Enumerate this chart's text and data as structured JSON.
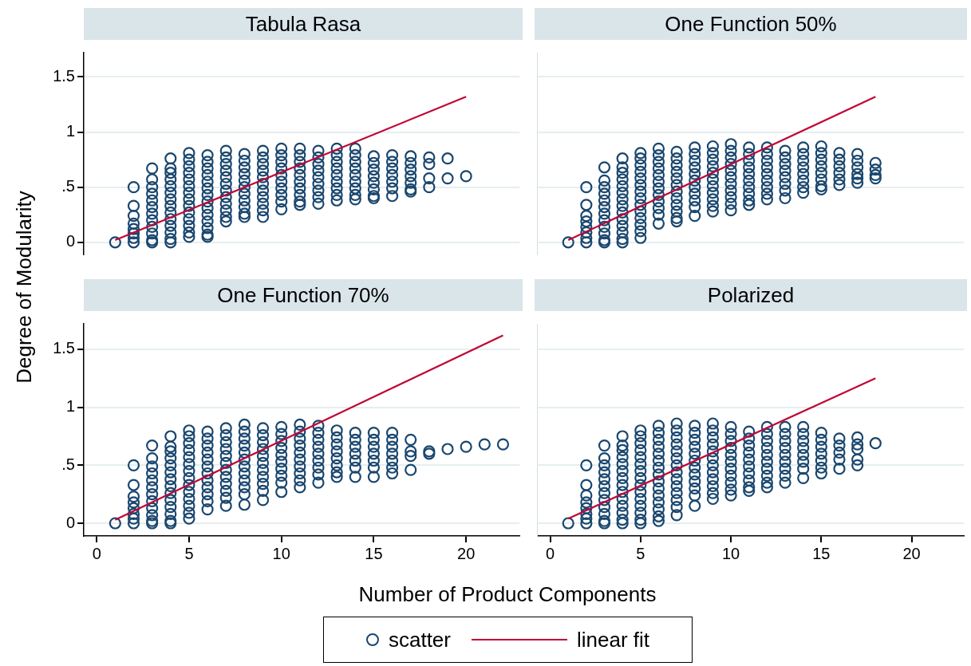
{
  "chart_data": [
    {
      "type": "scatter",
      "title": "Tabula Rasa",
      "xlabel": "Number of Product Components",
      "ylabel": "Degree of Modularity",
      "legend": "bottom",
      "xlim": [
        -0.7,
        22.9
      ],
      "ylim": [
        -0.11,
        1.72
      ],
      "xticks": [
        0,
        5,
        10,
        15,
        20
      ],
      "yticks": [
        0,
        {
          "value": 0.5,
          "label": ".5"
        },
        1,
        1.5
      ],
      "grid": "y",
      "marker": "circle",
      "tick_labels": "y",
      "series": [
        {
          "name": "scatter",
          "color": "#1a476f",
          "x": [
            1,
            2,
            2,
            2,
            2,
            2,
            2,
            2,
            2,
            3,
            3,
            3,
            3,
            3,
            3,
            3,
            3,
            3,
            3,
            3,
            3,
            4,
            4,
            4,
            4,
            4,
            4,
            4,
            4,
            4,
            4,
            4,
            4,
            4,
            4,
            5,
            5,
            5,
            5,
            5,
            5,
            5,
            5,
            5,
            5,
            5,
            5,
            5,
            5,
            6,
            6,
            6,
            6,
            6,
            6,
            6,
            6,
            6,
            6,
            6,
            6,
            6,
            6,
            7,
            7,
            7,
            7,
            7,
            7,
            7,
            7,
            7,
            7,
            7,
            7,
            8,
            8,
            8,
            8,
            8,
            8,
            8,
            8,
            8,
            8,
            8,
            9,
            9,
            9,
            9,
            9,
            9,
            9,
            9,
            9,
            9,
            9,
            10,
            10,
            10,
            10,
            10,
            10,
            10,
            10,
            10,
            10,
            11,
            11,
            11,
            11,
            11,
            11,
            11,
            11,
            11,
            11,
            12,
            12,
            12,
            12,
            12,
            12,
            12,
            12,
            12,
            13,
            13,
            13,
            13,
            13,
            13,
            13,
            13,
            13,
            14,
            14,
            14,
            14,
            14,
            14,
            14,
            14,
            14,
            15,
            15,
            15,
            15,
            15,
            15,
            15,
            15,
            16,
            16,
            16,
            16,
            16,
            16,
            16,
            17,
            17,
            17,
            17,
            17,
            17,
            17,
            18,
            18,
            18,
            18,
            19,
            19,
            20
          ],
          "values": [
            0,
            0.5,
            0.33,
            0.24,
            0.17,
            0.12,
            0.08,
            0.04,
            0,
            0.67,
            0.57,
            0.5,
            0.44,
            0.38,
            0.32,
            0.26,
            0.2,
            0.14,
            0.08,
            0.02,
            0,
            0.76,
            0.67,
            0.63,
            0.57,
            0.51,
            0.45,
            0.39,
            0.33,
            0.27,
            0.21,
            0.15,
            0.09,
            0.03,
            0,
            0.81,
            0.75,
            0.69,
            0.63,
            0.57,
            0.51,
            0.45,
            0.39,
            0.33,
            0.27,
            0.21,
            0.15,
            0.09,
            0.05,
            0.79,
            0.73,
            0.67,
            0.61,
            0.55,
            0.49,
            0.43,
            0.37,
            0.31,
            0.25,
            0.19,
            0.13,
            0.07,
            0.05,
            0.83,
            0.77,
            0.71,
            0.65,
            0.59,
            0.53,
            0.47,
            0.41,
            0.35,
            0.29,
            0.23,
            0.19,
            0.8,
            0.74,
            0.68,
            0.62,
            0.56,
            0.5,
            0.44,
            0.38,
            0.32,
            0.26,
            0.23,
            0.83,
            0.77,
            0.71,
            0.65,
            0.59,
            0.53,
            0.47,
            0.41,
            0.35,
            0.29,
            0.23,
            0.85,
            0.79,
            0.73,
            0.67,
            0.61,
            0.55,
            0.49,
            0.43,
            0.37,
            0.3,
            0.85,
            0.79,
            0.73,
            0.67,
            0.61,
            0.55,
            0.49,
            0.43,
            0.37,
            0.34,
            0.83,
            0.77,
            0.71,
            0.65,
            0.59,
            0.53,
            0.47,
            0.41,
            0.35,
            0.85,
            0.79,
            0.73,
            0.67,
            0.61,
            0.55,
            0.49,
            0.43,
            0.38,
            0.85,
            0.79,
            0.73,
            0.67,
            0.61,
            0.55,
            0.49,
            0.43,
            0.39,
            0.78,
            0.72,
            0.66,
            0.6,
            0.54,
            0.48,
            0.42,
            0.4,
            0.79,
            0.73,
            0.67,
            0.61,
            0.55,
            0.49,
            0.42,
            0.78,
            0.72,
            0.66,
            0.6,
            0.54,
            0.48,
            0.46,
            0.77,
            0.71,
            0.58,
            0.5,
            0.76,
            0.58,
            0.6
          ]
        },
        {
          "name": "linear fit",
          "type": "line",
          "marker": "none",
          "color": "#c10534",
          "x": [
            1,
            20
          ],
          "values": [
            0.02,
            1.32
          ]
        }
      ]
    },
    {
      "type": "scatter",
      "title": "One Function 50%",
      "xlim": [
        -0.7,
        22.9
      ],
      "ylim": [
        -0.11,
        1.72
      ],
      "xticks": [
        0,
        5,
        10,
        15,
        20
      ],
      "yticks": [
        0,
        0.5,
        1,
        1.5
      ],
      "grid": "y",
      "marker": "circle",
      "tick_labels": false,
      "series": [
        {
          "color": "#1a476f",
          "x": [
            1,
            2,
            2,
            2,
            2,
            2,
            2,
            2,
            2,
            3,
            3,
            3,
            3,
            3,
            3,
            3,
            3,
            3,
            3,
            3,
            3,
            4,
            4,
            4,
            4,
            4,
            4,
            4,
            4,
            4,
            4,
            4,
            4,
            4,
            4,
            5,
            5,
            5,
            5,
            5,
            5,
            5,
            5,
            5,
            5,
            5,
            5,
            5,
            5,
            6,
            6,
            6,
            6,
            6,
            6,
            6,
            6,
            6,
            6,
            6,
            6,
            7,
            7,
            7,
            7,
            7,
            7,
            7,
            7,
            7,
            7,
            7,
            7,
            8,
            8,
            8,
            8,
            8,
            8,
            8,
            8,
            8,
            8,
            8,
            9,
            9,
            9,
            9,
            9,
            9,
            9,
            9,
            9,
            9,
            9,
            10,
            10,
            10,
            10,
            10,
            10,
            10,
            10,
            10,
            10,
            10,
            11,
            11,
            11,
            11,
            11,
            11,
            11,
            11,
            11,
            11,
            12,
            12,
            12,
            12,
            12,
            12,
            12,
            12,
            12,
            13,
            13,
            13,
            13,
            13,
            13,
            13,
            13,
            14,
            14,
            14,
            14,
            14,
            14,
            14,
            14,
            15,
            15,
            15,
            15,
            15,
            15,
            15,
            15,
            16,
            16,
            16,
            16,
            16,
            16,
            17,
            17,
            17,
            17,
            17,
            17,
            18,
            18,
            18,
            18
          ],
          "values": [
            0,
            0.5,
            0.34,
            0.24,
            0.19,
            0.14,
            0.09,
            0.04,
            0,
            0.68,
            0.56,
            0.5,
            0.44,
            0.38,
            0.32,
            0.26,
            0.2,
            0.14,
            0.08,
            0.02,
            0,
            0.76,
            0.68,
            0.63,
            0.57,
            0.51,
            0.45,
            0.39,
            0.33,
            0.27,
            0.21,
            0.15,
            0.09,
            0.03,
            0,
            0.81,
            0.76,
            0.7,
            0.64,
            0.58,
            0.52,
            0.46,
            0.4,
            0.34,
            0.28,
            0.22,
            0.16,
            0.1,
            0.04,
            0.85,
            0.79,
            0.73,
            0.67,
            0.61,
            0.55,
            0.49,
            0.43,
            0.37,
            0.31,
            0.25,
            0.17,
            0.82,
            0.76,
            0.7,
            0.64,
            0.58,
            0.52,
            0.46,
            0.4,
            0.34,
            0.28,
            0.22,
            0.19,
            0.86,
            0.8,
            0.74,
            0.68,
            0.62,
            0.56,
            0.5,
            0.44,
            0.38,
            0.32,
            0.24,
            0.87,
            0.81,
            0.75,
            0.69,
            0.63,
            0.57,
            0.51,
            0.45,
            0.39,
            0.33,
            0.28,
            0.89,
            0.83,
            0.77,
            0.71,
            0.65,
            0.59,
            0.53,
            0.47,
            0.41,
            0.35,
            0.29,
            0.86,
            0.8,
            0.74,
            0.68,
            0.62,
            0.56,
            0.5,
            0.44,
            0.38,
            0.34,
            0.86,
            0.8,
            0.74,
            0.68,
            0.62,
            0.56,
            0.5,
            0.44,
            0.39,
            0.83,
            0.77,
            0.71,
            0.65,
            0.59,
            0.53,
            0.47,
            0.4,
            0.86,
            0.8,
            0.74,
            0.68,
            0.62,
            0.56,
            0.5,
            0.45,
            0.87,
            0.81,
            0.75,
            0.69,
            0.63,
            0.57,
            0.51,
            0.48,
            0.81,
            0.75,
            0.69,
            0.63,
            0.57,
            0.52,
            0.8,
            0.74,
            0.68,
            0.62,
            0.58,
            0.54,
            0.72,
            0.66,
            0.61,
            0.58
          ]
        },
        {
          "type": "line",
          "marker": "none",
          "color": "#c10534",
          "x": [
            1,
            18
          ],
          "values": [
            0.02,
            1.32
          ]
        }
      ]
    },
    {
      "type": "scatter",
      "title": "One Function 70%",
      "xlim": [
        -0.7,
        22.9
      ],
      "ylim": [
        -0.11,
        1.72
      ],
      "xticks": [
        0,
        5,
        10,
        15,
        20
      ],
      "yticks": [
        0,
        {
          "value": 0.5,
          "label": ".5"
        },
        1,
        1.5
      ],
      "grid": "y",
      "marker": "circle",
      "series": [
        {
          "color": "#1a476f",
          "x": [
            1,
            2,
            2,
            2,
            2,
            2,
            2,
            2,
            2,
            3,
            3,
            3,
            3,
            3,
            3,
            3,
            3,
            3,
            3,
            3,
            3,
            4,
            4,
            4,
            4,
            4,
            4,
            4,
            4,
            4,
            4,
            4,
            4,
            4,
            4,
            5,
            5,
            5,
            5,
            5,
            5,
            5,
            5,
            5,
            5,
            5,
            5,
            5,
            5,
            6,
            6,
            6,
            6,
            6,
            6,
            6,
            6,
            6,
            6,
            6,
            6,
            7,
            7,
            7,
            7,
            7,
            7,
            7,
            7,
            7,
            7,
            7,
            7,
            8,
            8,
            8,
            8,
            8,
            8,
            8,
            8,
            8,
            8,
            8,
            8,
            9,
            9,
            9,
            9,
            9,
            9,
            9,
            9,
            9,
            9,
            9,
            10,
            10,
            10,
            10,
            10,
            10,
            10,
            10,
            10,
            10,
            11,
            11,
            11,
            11,
            11,
            11,
            11,
            11,
            11,
            11,
            12,
            12,
            12,
            12,
            12,
            12,
            12,
            12,
            12,
            13,
            13,
            13,
            13,
            13,
            13,
            13,
            13,
            14,
            14,
            14,
            14,
            14,
            14,
            14,
            15,
            15,
            15,
            15,
            15,
            15,
            15,
            16,
            16,
            16,
            16,
            16,
            16,
            16,
            17,
            17,
            17,
            17,
            18,
            18,
            19,
            20,
            21,
            22
          ],
          "values": [
            0,
            0.5,
            0.33,
            0.23,
            0.18,
            0.13,
            0.08,
            0.04,
            0,
            0.67,
            0.56,
            0.49,
            0.43,
            0.37,
            0.31,
            0.25,
            0.19,
            0.13,
            0.07,
            0.02,
            0,
            0.75,
            0.66,
            0.62,
            0.56,
            0.5,
            0.44,
            0.38,
            0.32,
            0.26,
            0.2,
            0.14,
            0.08,
            0.02,
            0,
            0.8,
            0.75,
            0.69,
            0.63,
            0.57,
            0.51,
            0.45,
            0.39,
            0.33,
            0.27,
            0.21,
            0.15,
            0.09,
            0.04,
            0.79,
            0.73,
            0.67,
            0.61,
            0.55,
            0.49,
            0.43,
            0.37,
            0.31,
            0.25,
            0.19,
            0.12,
            0.82,
            0.76,
            0.7,
            0.64,
            0.58,
            0.52,
            0.46,
            0.4,
            0.34,
            0.28,
            0.22,
            0.15,
            0.85,
            0.79,
            0.73,
            0.67,
            0.61,
            0.55,
            0.49,
            0.43,
            0.37,
            0.31,
            0.25,
            0.16,
            0.82,
            0.76,
            0.7,
            0.64,
            0.58,
            0.52,
            0.46,
            0.4,
            0.34,
            0.28,
            0.2,
            0.83,
            0.77,
            0.71,
            0.65,
            0.59,
            0.53,
            0.47,
            0.41,
            0.35,
            0.27,
            0.85,
            0.79,
            0.73,
            0.67,
            0.61,
            0.55,
            0.49,
            0.43,
            0.37,
            0.31,
            0.84,
            0.78,
            0.72,
            0.66,
            0.6,
            0.54,
            0.48,
            0.42,
            0.35,
            0.8,
            0.74,
            0.68,
            0.62,
            0.56,
            0.5,
            0.44,
            0.4,
            0.78,
            0.72,
            0.66,
            0.6,
            0.54,
            0.48,
            0.4,
            0.78,
            0.72,
            0.66,
            0.6,
            0.54,
            0.48,
            0.4,
            0.78,
            0.72,
            0.66,
            0.6,
            0.54,
            0.48,
            0.43,
            0.72,
            0.62,
            0.58,
            0.46,
            0.62,
            0.6,
            0.64,
            0.66,
            0.68,
            0.68
          ]
        },
        {
          "type": "line",
          "marker": "none",
          "color": "#c10534",
          "x": [
            1,
            22
          ],
          "values": [
            0.03,
            1.62
          ]
        }
      ]
    },
    {
      "type": "scatter",
      "title": "Polarized",
      "xlim": [
        -0.7,
        22.9
      ],
      "ylim": [
        -0.11,
        1.72
      ],
      "xticks": [
        0,
        5,
        10,
        15,
        20
      ],
      "yticks": [
        0,
        0.5,
        1,
        1.5
      ],
      "grid": "y",
      "marker": "circle",
      "tick_labels": "x",
      "series": [
        {
          "color": "#1a476f",
          "x": [
            1,
            2,
            2,
            2,
            2,
            2,
            2,
            2,
            2,
            3,
            3,
            3,
            3,
            3,
            3,
            3,
            3,
            3,
            3,
            3,
            3,
            4,
            4,
            4,
            4,
            4,
            4,
            4,
            4,
            4,
            4,
            4,
            4,
            4,
            4,
            5,
            5,
            5,
            5,
            5,
            5,
            5,
            5,
            5,
            5,
            5,
            5,
            5,
            5,
            5,
            6,
            6,
            6,
            6,
            6,
            6,
            6,
            6,
            6,
            6,
            6,
            6,
            6,
            6,
            6,
            7,
            7,
            7,
            7,
            7,
            7,
            7,
            7,
            7,
            7,
            7,
            7,
            7,
            7,
            8,
            8,
            8,
            8,
            8,
            8,
            8,
            8,
            8,
            8,
            8,
            8,
            9,
            9,
            9,
            9,
            9,
            9,
            9,
            9,
            9,
            9,
            9,
            9,
            10,
            10,
            10,
            10,
            10,
            10,
            10,
            10,
            10,
            10,
            10,
            11,
            11,
            11,
            11,
            11,
            11,
            11,
            11,
            11,
            11,
            12,
            12,
            12,
            12,
            12,
            12,
            12,
            12,
            12,
            12,
            13,
            13,
            13,
            13,
            13,
            13,
            13,
            13,
            13,
            14,
            14,
            14,
            14,
            14,
            14,
            14,
            14,
            15,
            15,
            15,
            15,
            15,
            15,
            15,
            16,
            16,
            16,
            16,
            16,
            17,
            17,
            17,
            17,
            17,
            18
          ],
          "values": [
            0,
            0.5,
            0.33,
            0.24,
            0.18,
            0.13,
            0.08,
            0.04,
            0,
            0.67,
            0.56,
            0.5,
            0.44,
            0.38,
            0.32,
            0.26,
            0.2,
            0.14,
            0.08,
            0.02,
            0,
            0.75,
            0.67,
            0.63,
            0.57,
            0.51,
            0.45,
            0.39,
            0.33,
            0.27,
            0.21,
            0.15,
            0.09,
            0.03,
            0,
            0.8,
            0.75,
            0.69,
            0.63,
            0.57,
            0.51,
            0.45,
            0.39,
            0.33,
            0.27,
            0.21,
            0.15,
            0.09,
            0.03,
            0,
            0.84,
            0.78,
            0.72,
            0.66,
            0.6,
            0.54,
            0.48,
            0.42,
            0.36,
            0.3,
            0.24,
            0.18,
            0.12,
            0.06,
            0.02,
            0.86,
            0.8,
            0.74,
            0.68,
            0.62,
            0.56,
            0.5,
            0.44,
            0.38,
            0.32,
            0.26,
            0.2,
            0.14,
            0.07,
            0.84,
            0.78,
            0.72,
            0.66,
            0.6,
            0.54,
            0.48,
            0.42,
            0.36,
            0.3,
            0.24,
            0.15,
            0.86,
            0.8,
            0.74,
            0.68,
            0.62,
            0.56,
            0.5,
            0.44,
            0.38,
            0.32,
            0.26,
            0.21,
            0.83,
            0.77,
            0.71,
            0.65,
            0.59,
            0.53,
            0.47,
            0.41,
            0.35,
            0.29,
            0.24,
            0.79,
            0.73,
            0.67,
            0.61,
            0.55,
            0.49,
            0.43,
            0.37,
            0.31,
            0.28,
            0.83,
            0.77,
            0.71,
            0.65,
            0.59,
            0.53,
            0.47,
            0.41,
            0.35,
            0.31,
            0.83,
            0.77,
            0.71,
            0.65,
            0.59,
            0.53,
            0.47,
            0.41,
            0.35,
            0.83,
            0.77,
            0.71,
            0.65,
            0.59,
            0.53,
            0.47,
            0.39,
            0.78,
            0.72,
            0.66,
            0.6,
            0.54,
            0.48,
            0.43,
            0.73,
            0.67,
            0.61,
            0.55,
            0.47,
            0.74,
            0.68,
            0.64,
            0.55,
            0.5,
            0.69
          ]
        },
        {
          "type": "line",
          "marker": "none",
          "color": "#c10534",
          "x": [
            1,
            18
          ],
          "values": [
            0.04,
            1.25
          ]
        }
      ]
    }
  ]
}
